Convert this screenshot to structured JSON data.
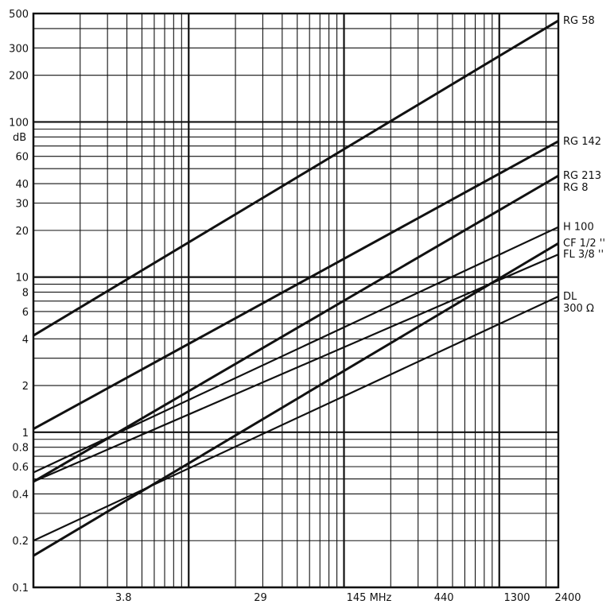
{
  "chart_data": {
    "type": "line",
    "title": "",
    "xlabel": "",
    "ylabel": "dB",
    "x_scale": "log",
    "y_scale": "log",
    "xlim": [
      1,
      2400
    ],
    "ylim": [
      0.1,
      500
    ],
    "grid": true,
    "legend": "labels at right end of lines",
    "x_ticks": [
      {
        "value": 3.8,
        "label": "3.8"
      },
      {
        "value": 29,
        "label": "29"
      },
      {
        "value": 145,
        "label": "145 MHz"
      },
      {
        "value": 440,
        "label": "440"
      },
      {
        "value": 1300,
        "label": "1300"
      },
      {
        "value": 2400,
        "label": "2400"
      }
    ],
    "y_ticks": [
      {
        "value": 0.1,
        "label": "0.1"
      },
      {
        "value": 0.2,
        "label": "0.2"
      },
      {
        "value": 0.4,
        "label": "0.4"
      },
      {
        "value": 0.6,
        "label": "0.6"
      },
      {
        "value": 0.8,
        "label": "0.8"
      },
      {
        "value": 1,
        "label": "1"
      },
      {
        "value": 2,
        "label": "2"
      },
      {
        "value": 4,
        "label": "4"
      },
      {
        "value": 6,
        "label": "6"
      },
      {
        "value": 8,
        "label": "8"
      },
      {
        "value": 10,
        "label": "10"
      },
      {
        "value": 20,
        "label": "20"
      },
      {
        "value": 30,
        "label": "30"
      },
      {
        "value": 40,
        "label": "40"
      },
      {
        "value": 60,
        "label": "60"
      },
      {
        "value": 100,
        "label": "100"
      },
      {
        "value": 200,
        "label": "200"
      },
      {
        "value": 300,
        "label": "300"
      },
      {
        "value": 500,
        "label": "500"
      }
    ],
    "series": [
      {
        "name": "RG 58",
        "labels": [
          "RG 58"
        ],
        "x": [
          1,
          2400
        ],
        "y": [
          4.2,
          450
        ],
        "stroke": 3
      },
      {
        "name": "RG 142",
        "labels": [
          "RG 142"
        ],
        "x": [
          1,
          2400
        ],
        "y": [
          1.05,
          75
        ],
        "stroke": 3
      },
      {
        "name": "RG 213 / RG 8",
        "labels": [
          "RG 213",
          "RG 8"
        ],
        "x": [
          1,
          2400
        ],
        "y": [
          0.48,
          45
        ],
        "stroke": 3
      },
      {
        "name": "H 100",
        "labels": [
          "H 100"
        ],
        "x": [
          1,
          2400
        ],
        "y": [
          0.55,
          21
        ],
        "stroke": 2.2
      },
      {
        "name": "CF 1/2 ''",
        "labels": [
          "CF 1/2 ''"
        ],
        "x": [
          1,
          2400
        ],
        "y": [
          0.16,
          16.5
        ],
        "stroke": 3
      },
      {
        "name": "FL 3/8 ''",
        "labels": [
          "FL 3/8 ''"
        ],
        "x": [
          1,
          2400
        ],
        "y": [
          0.48,
          14
        ],
        "stroke": 2.2
      },
      {
        "name": "DL 300 Ω",
        "labels": [
          "DL",
          "300 Ω"
        ],
        "x": [
          1,
          2400
        ],
        "y": [
          0.2,
          7.5
        ],
        "stroke": 2.2
      }
    ]
  }
}
